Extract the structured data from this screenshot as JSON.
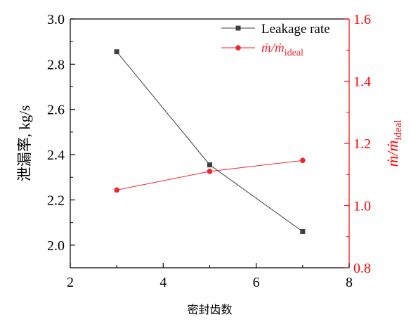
{
  "chart_data": {
    "type": "line",
    "x": [
      3,
      5,
      7
    ],
    "xlabel": "密封齿数",
    "xlim": [
      2,
      8
    ],
    "xticks": [
      "2",
      "4",
      "6",
      "8"
    ],
    "y_left": {
      "label": "泄漏率, kg/s",
      "lim": [
        1.9,
        3.0
      ],
      "ticks": [
        "2.0",
        "2.2",
        "2.4",
        "2.6",
        "2.8",
        "3.0"
      ],
      "color": "#000000"
    },
    "y_right": {
      "label_main": "ṁ/ṁ",
      "label_sub": "ideal",
      "lim": [
        0.8,
        1.6
      ],
      "ticks": [
        "0.8",
        "1.0",
        "1.2",
        "1.4",
        "1.6"
      ],
      "color": "#ff0000"
    },
    "series": [
      {
        "name": "Leakage rate",
        "axis": "left",
        "values": [
          2.855,
          2.355,
          2.06
        ],
        "color": "#3f3f3f",
        "marker": "square"
      },
      {
        "name_main": "ṁ/ṁ",
        "name_sub": "ideal",
        "axis": "right",
        "values": [
          1.05,
          1.11,
          1.145
        ],
        "color": "#f0282d",
        "marker": "circle"
      }
    ],
    "legend_position": "top-right",
    "grid": false
  }
}
